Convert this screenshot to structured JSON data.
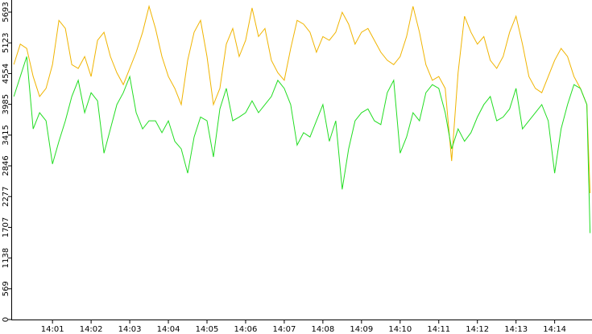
{
  "chart_data": {
    "type": "line",
    "x": [
      0,
      10,
      20,
      30,
      40,
      50,
      60,
      70,
      80,
      90,
      100,
      110,
      120,
      130,
      140,
      150,
      160,
      170,
      180,
      190,
      200,
      210,
      220,
      230,
      240,
      250,
      260,
      270,
      280,
      290,
      300,
      310,
      320,
      330,
      340,
      350,
      360,
      370,
      380,
      390,
      400,
      410,
      420,
      430,
      440,
      450,
      460,
      470,
      480,
      490,
      500,
      510,
      520,
      530,
      540,
      550,
      560,
      570,
      580,
      590,
      600,
      610,
      620,
      630,
      640,
      650,
      660,
      670,
      680,
      690,
      700,
      710,
      720,
      730,
      740,
      750,
      760,
      770,
      780,
      790,
      800,
      810,
      820,
      830,
      840,
      850,
      860,
      870,
      880,
      890,
      895
    ],
    "xlim": [
      -4,
      898
    ],
    "xticks": [
      {
        "value": 60,
        "label": "14:01"
      },
      {
        "value": 120,
        "label": "14:02"
      },
      {
        "value": 180,
        "label": "14:03"
      },
      {
        "value": 240,
        "label": "14:04"
      },
      {
        "value": 300,
        "label": "14:05"
      },
      {
        "value": 360,
        "label": "14:06"
      },
      {
        "value": 420,
        "label": "14:07"
      },
      {
        "value": 480,
        "label": "14:08"
      },
      {
        "value": 540,
        "label": "14:09"
      },
      {
        "value": 600,
        "label": "14:10"
      },
      {
        "value": 660,
        "label": "14:11"
      },
      {
        "value": 720,
        "label": "14:12"
      },
      {
        "value": 780,
        "label": "14:13"
      },
      {
        "value": 840,
        "label": "14:14"
      }
    ],
    "ylim": [
      0,
      5917
    ],
    "yticks": [
      0,
      569,
      1138,
      1707,
      2277,
      2846,
      3415,
      3985,
      4554,
      5123,
      5693
    ],
    "series": [
      {
        "color": "#f0b400",
        "values": [
          4723,
          5100,
          5020,
          4500,
          4130,
          4280,
          4720,
          5540,
          5390,
          4720,
          4650,
          4870,
          4500,
          5170,
          5320,
          4870,
          4570,
          4350,
          4650,
          4950,
          5320,
          5800,
          5390,
          4870,
          4500,
          4280,
          3980,
          4800,
          5320,
          5540,
          4870,
          3980,
          4280,
          5100,
          5390,
          4870,
          5170,
          5770,
          5240,
          5390,
          4800,
          4570,
          4430,
          5020,
          5540,
          5470,
          5320,
          4950,
          5240,
          5170,
          5320,
          5690,
          5470,
          5100,
          5320,
          5390,
          5170,
          4950,
          4800,
          4720,
          4870,
          5240,
          5800,
          5320,
          4720,
          4430,
          4500,
          4280,
          2935,
          4570,
          5617,
          5320,
          5100,
          5240,
          4800,
          4650,
          4870,
          5320,
          5617,
          5100,
          4500,
          4280,
          4200,
          4500,
          4800,
          5020,
          4870,
          4500,
          4280,
          3980,
          2340
        ]
      },
      {
        "color": "#22dd22",
        "values": [
          4130,
          4500,
          4870,
          3530,
          3830,
          3680,
          2880,
          3300,
          3680,
          4130,
          4430,
          3830,
          4200,
          4050,
          3080,
          3530,
          3980,
          4200,
          4500,
          3830,
          3530,
          3680,
          3680,
          3460,
          3680,
          3300,
          3160,
          2710,
          3380,
          3750,
          3680,
          3010,
          3900,
          4280,
          3680,
          3750,
          3830,
          4050,
          3830,
          3980,
          4130,
          4430,
          4280,
          3980,
          3230,
          3460,
          3380,
          3680,
          3980,
          3300,
          3680,
          2410,
          3160,
          3680,
          3830,
          3900,
          3680,
          3610,
          4200,
          4430,
          3080,
          3380,
          3830,
          3680,
          4200,
          4350,
          4280,
          3830,
          3160,
          3530,
          3300,
          3460,
          3750,
          3980,
          4130,
          3680,
          3750,
          3900,
          4280,
          3530,
          3680,
          3830,
          3980,
          3680,
          2710,
          3530,
          3980,
          4350,
          4280,
          3980,
          1600
        ]
      }
    ]
  }
}
